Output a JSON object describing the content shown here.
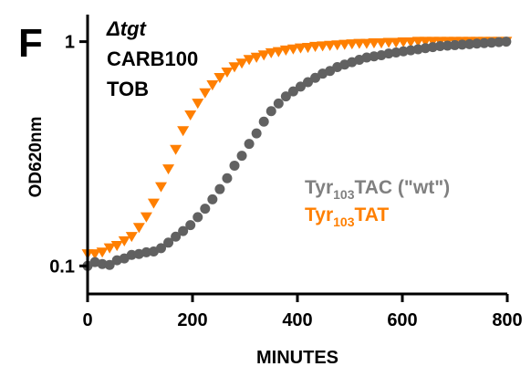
{
  "panel_letter": "F",
  "conditions": {
    "strain": "Δtgt",
    "line2": "CARB100",
    "line3": "TOB"
  },
  "chart_data": {
    "type": "scatter",
    "title": "",
    "xlabel": "MINUTES",
    "ylabel": "OD620nm",
    "xlim": [
      0,
      800
    ],
    "ylim": [
      0.075,
      1.32
    ],
    "yscale": "log",
    "x_ticks": [
      0,
      200,
      400,
      600,
      800
    ],
    "y_ticks": [
      0.1,
      1
    ],
    "y_tick_labels": [
      "0.1",
      "1"
    ],
    "grid": false,
    "legend_position": "right-middle",
    "series": [
      {
        "name": "Tyr103TAC (\"wt\")",
        "name_base": "Tyr",
        "name_sub": "103",
        "name_rest": "TAC (\"wt\")",
        "color": "#616161",
        "marker": "circle",
        "x": [
          0,
          14,
          28,
          42,
          56,
          70,
          84,
          98,
          112,
          126,
          140,
          154,
          168,
          182,
          196,
          210,
          224,
          238,
          252,
          266,
          280,
          294,
          308,
          322,
          336,
          350,
          364,
          378,
          392,
          406,
          420,
          434,
          448,
          462,
          476,
          490,
          504,
          518,
          532,
          546,
          560,
          574,
          588,
          602,
          616,
          630,
          644,
          658,
          672,
          686,
          700,
          714,
          728,
          742,
          756,
          770,
          784,
          798
        ],
        "y": [
          0.1,
          0.104,
          0.102,
          0.101,
          0.106,
          0.108,
          0.112,
          0.113,
          0.115,
          0.116,
          0.12,
          0.127,
          0.135,
          0.143,
          0.152,
          0.165,
          0.18,
          0.198,
          0.22,
          0.246,
          0.28,
          0.31,
          0.35,
          0.39,
          0.44,
          0.49,
          0.53,
          0.57,
          0.6,
          0.63,
          0.66,
          0.69,
          0.72,
          0.74,
          0.77,
          0.79,
          0.81,
          0.83,
          0.85,
          0.86,
          0.87,
          0.885,
          0.895,
          0.905,
          0.915,
          0.925,
          0.935,
          0.945,
          0.955,
          0.96,
          0.965,
          0.97,
          0.975,
          0.98,
          0.985,
          0.99,
          0.995,
          1.0
        ]
      },
      {
        "name": "Tyr103TAT",
        "name_base": "Tyr",
        "name_sub": "103",
        "name_rest": "TAT",
        "color": "#ff7f00",
        "marker": "triangle-down",
        "x": [
          0,
          14,
          28,
          42,
          56,
          70,
          84,
          98,
          112,
          126,
          140,
          154,
          168,
          182,
          196,
          210,
          224,
          238,
          252,
          266,
          280,
          294,
          308,
          322,
          336,
          350,
          364,
          378,
          392,
          406,
          420,
          434,
          448,
          462,
          476,
          490,
          504,
          518,
          532,
          546,
          560,
          574,
          588,
          602,
          616,
          630,
          644,
          658,
          672,
          686,
          700,
          714,
          728,
          742,
          756,
          770,
          784,
          798
        ],
        "y": [
          0.113,
          0.113,
          0.115,
          0.12,
          0.123,
          0.129,
          0.135,
          0.148,
          0.165,
          0.19,
          0.225,
          0.27,
          0.33,
          0.4,
          0.47,
          0.53,
          0.59,
          0.64,
          0.69,
          0.73,
          0.77,
          0.8,
          0.83,
          0.85,
          0.87,
          0.89,
          0.9,
          0.915,
          0.925,
          0.935,
          0.94,
          0.95,
          0.955,
          0.96,
          0.965,
          0.97,
          0.975,
          0.98,
          0.98,
          0.985,
          0.985,
          0.99,
          0.99,
          0.995,
          0.995,
          1.0,
          1.0,
          1.0,
          1.0,
          1.0,
          1.0,
          1.0,
          1.0,
          1.0,
          1.0,
          1.0,
          1.0,
          1.0
        ]
      }
    ]
  }
}
